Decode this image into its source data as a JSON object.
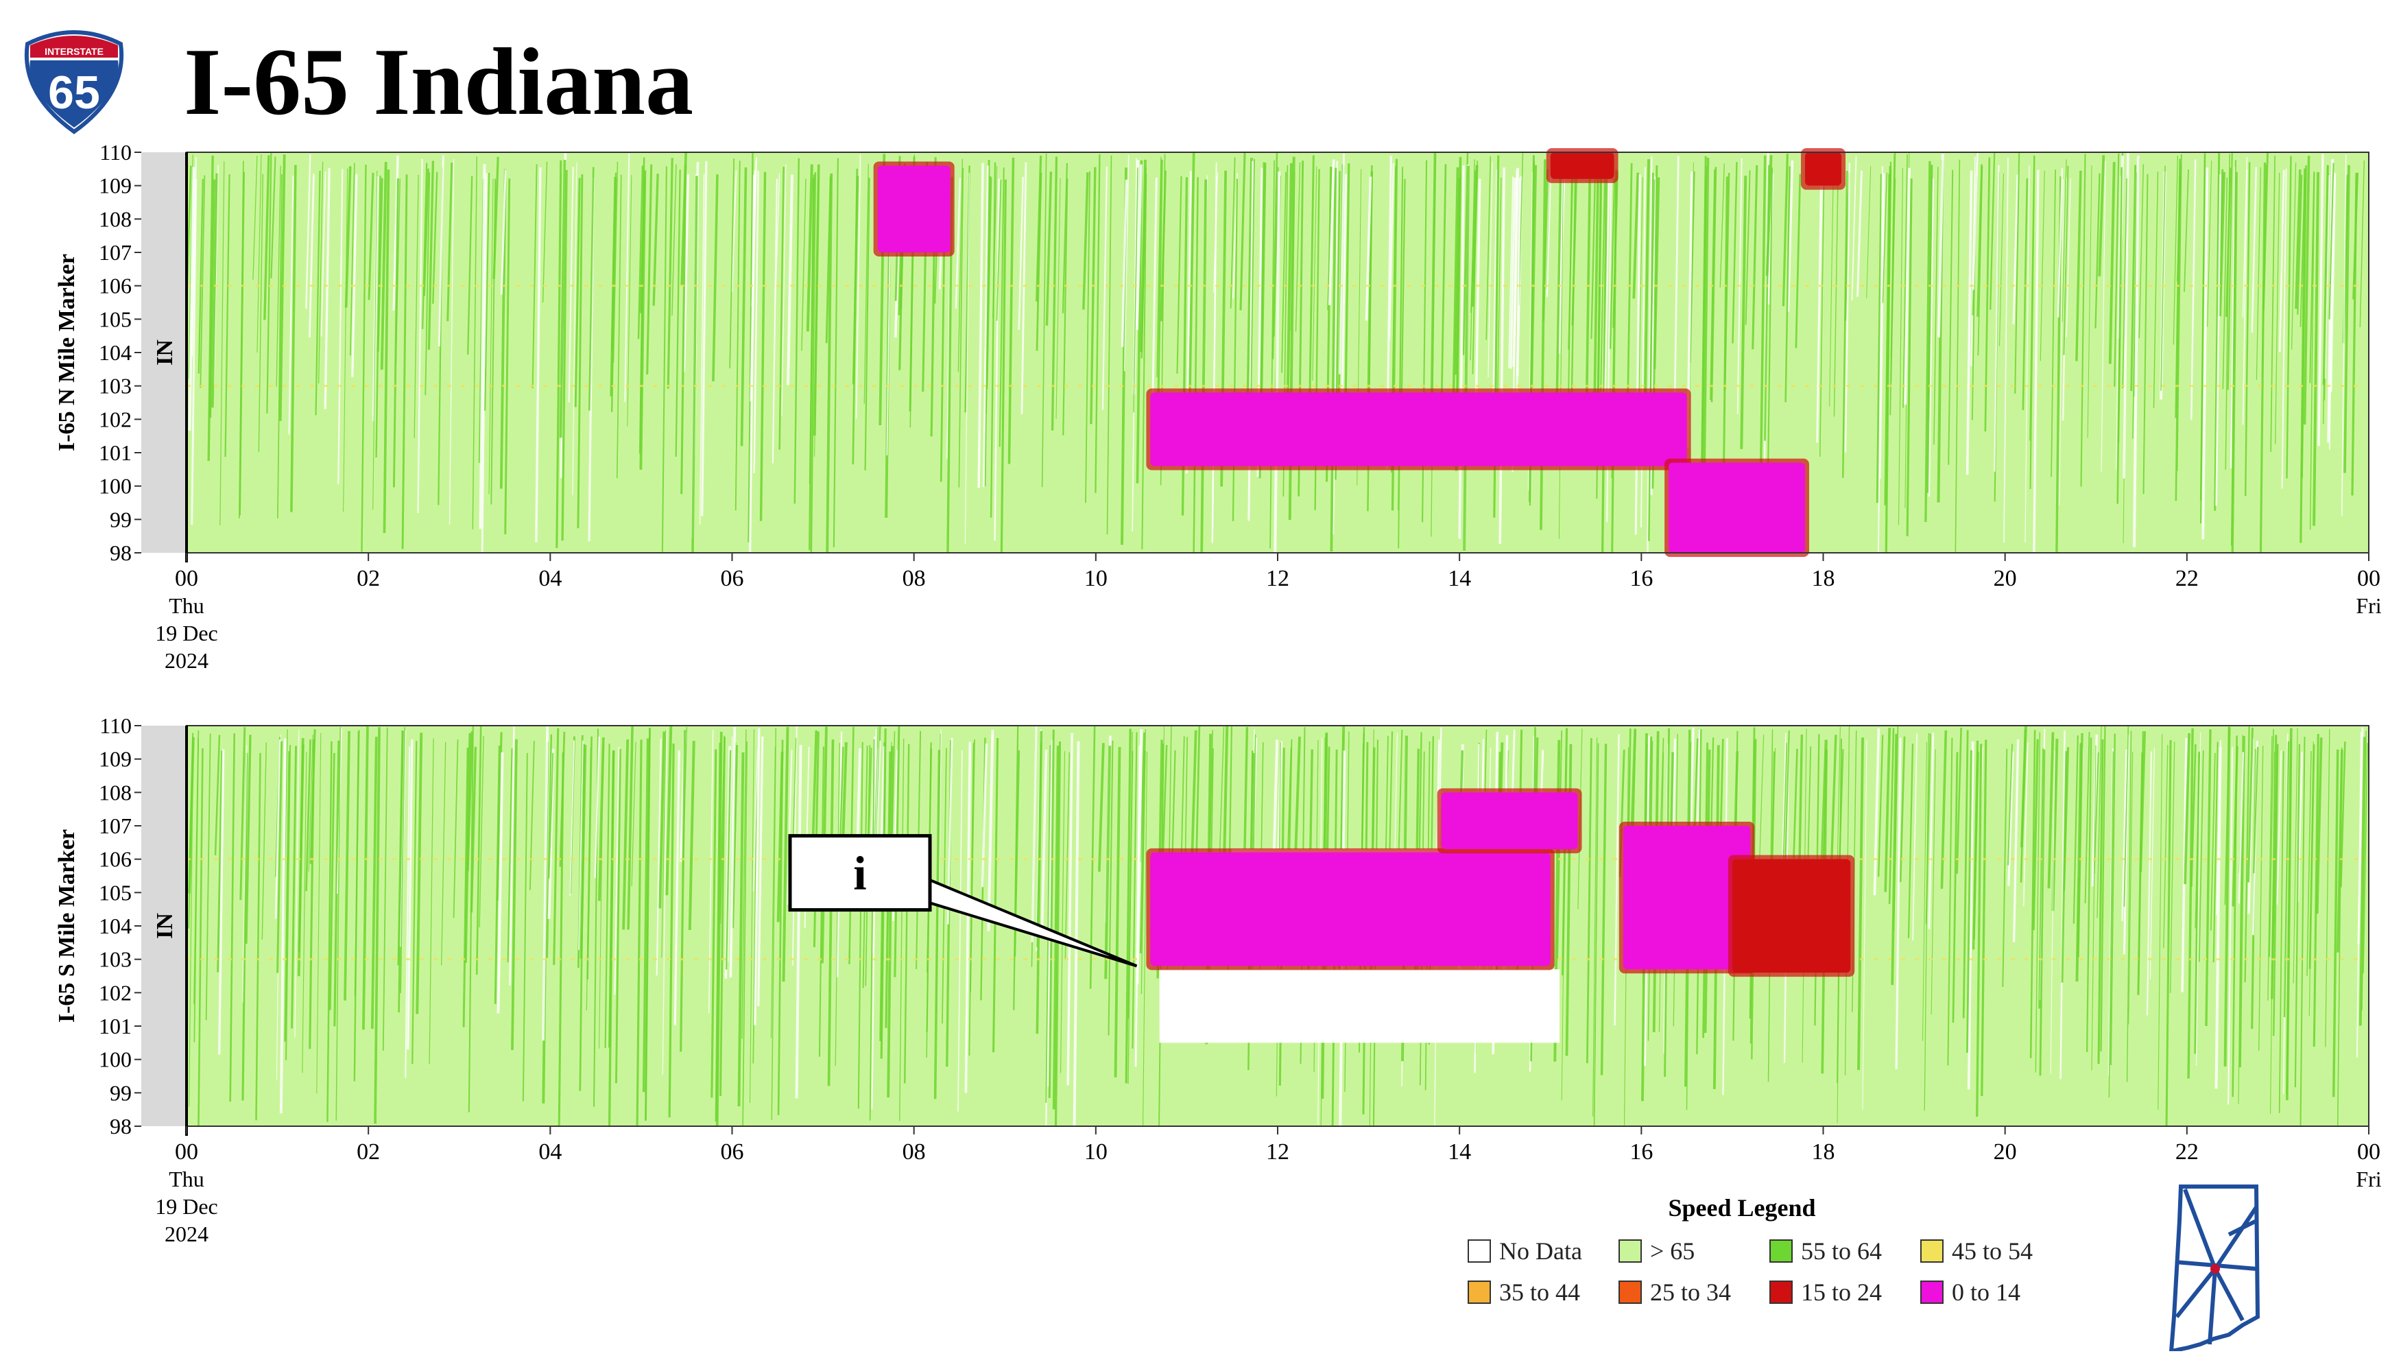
{
  "header": {
    "title": "I-65 Indiana",
    "shield_banner": "INTERSTATE",
    "shield_number": "65"
  },
  "colors": {
    "no_data": "#ffffff",
    "gt_65": "#c9f59a",
    "55_64": "#6ed630",
    "45_54": "#f2e25a",
    "35_44": "#f5b236",
    "25_34": "#f05a14",
    "15_24": "#d01010",
    "0_14": "#ee10dd",
    "axis_band": "#d9d9d9",
    "shield_blue": "#1f4e9c",
    "shield_red": "#c8102e",
    "map_line": "#1f4e9c"
  },
  "chart_data": [
    {
      "type": "heatmap",
      "ylabel": "I-65 N Mile Marker",
      "band_label": "IN",
      "ylim": [
        98,
        110
      ],
      "yticks": [
        "98",
        "99",
        "100",
        "101",
        "102",
        "103",
        "104",
        "105",
        "106",
        "107",
        "108",
        "109",
        "110"
      ],
      "xlim": [
        0,
        24
      ],
      "xticks": [
        "00",
        "02",
        "04",
        "06",
        "08",
        "10",
        "12",
        "14",
        "16",
        "18",
        "20",
        "22",
        "00"
      ],
      "x_start_label": [
        "Thu",
        "19 Dec",
        "2024"
      ],
      "x_end_label": "Fri",
      "background_category": "> 65",
      "congestion_regions": [
        {
          "category": "0 to 14",
          "hours": [
            7.6,
            8.4
          ],
          "miles": [
            107.0,
            109.6
          ]
        },
        {
          "category": "0 to 14",
          "hours": [
            10.6,
            16.5
          ],
          "miles": [
            100.6,
            102.8
          ]
        },
        {
          "category": "0 to 14",
          "hours": [
            16.3,
            17.8
          ],
          "miles": [
            98.0,
            100.7
          ]
        },
        {
          "category": "15 to 24",
          "hours": [
            15.0,
            15.7
          ],
          "miles": [
            109.2,
            110.0
          ]
        },
        {
          "category": "15 to 24",
          "hours": [
            17.8,
            18.2
          ],
          "miles": [
            109.0,
            110.0
          ]
        }
      ],
      "annotations": []
    },
    {
      "type": "heatmap",
      "ylabel": "I-65 S Mile Marker",
      "band_label": "IN",
      "ylim": [
        98,
        110
      ],
      "yticks": [
        "98",
        "99",
        "100",
        "101",
        "102",
        "103",
        "104",
        "105",
        "106",
        "107",
        "108",
        "109",
        "110"
      ],
      "xlim": [
        0,
        24
      ],
      "xticks": [
        "00",
        "02",
        "04",
        "06",
        "08",
        "10",
        "12",
        "14",
        "16",
        "18",
        "20",
        "22",
        "00"
      ],
      "x_start_label": [
        "Thu",
        "19 Dec",
        "2024"
      ],
      "x_end_label": "Fri",
      "background_category": "> 65",
      "congestion_regions": [
        {
          "category": "0 to 14",
          "hours": [
            10.6,
            15.0
          ],
          "miles": [
            102.8,
            106.2
          ]
        },
        {
          "category": "0 to 14",
          "hours": [
            13.8,
            15.3
          ],
          "miles": [
            106.3,
            108.0
          ]
        },
        {
          "category": "0 to 14",
          "hours": [
            15.8,
            17.2
          ],
          "miles": [
            102.7,
            107.0
          ]
        },
        {
          "category": "15 to 24",
          "hours": [
            17.0,
            18.3
          ],
          "miles": [
            102.6,
            106.0
          ]
        }
      ],
      "no_data_regions": [
        {
          "hours": [
            10.7,
            15.1
          ],
          "miles": [
            100.5,
            102.7
          ]
        },
        {
          "hours": [
            11.5,
            15.0
          ],
          "miles": [
            103.5,
            106.3
          ]
        }
      ],
      "annotations": [
        {
          "text": "i",
          "hour": 10.45,
          "mile": 102.8
        }
      ]
    }
  ],
  "legend": {
    "title": "Speed Legend",
    "items": [
      {
        "label": "No Data",
        "color": "#ffffff"
      },
      {
        "label": "> 65",
        "color": "#c9f59a"
      },
      {
        "label": "55 to 64",
        "color": "#6ed630"
      },
      {
        "label": "45 to 54",
        "color": "#f2e25a"
      },
      {
        "label": "35 to 44",
        "color": "#f5b236"
      },
      {
        "label": "25 to 34",
        "color": "#f05a14"
      },
      {
        "label": "15 to 24",
        "color": "#d01010"
      },
      {
        "label": "0 to 14",
        "color": "#ee10dd"
      }
    ]
  }
}
